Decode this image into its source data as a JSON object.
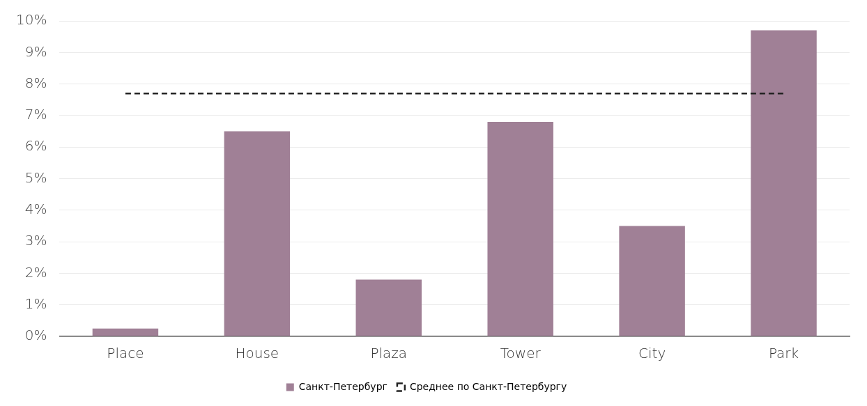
{
  "chart_data": {
    "type": "bar",
    "categories": [
      "Place",
      "House",
      "Plaza",
      "Tower",
      "City",
      "Park"
    ],
    "series": [
      {
        "name": "Санкт-Петербург",
        "color": "#a08096",
        "values": [
          0.25,
          6.5,
          1.8,
          6.8,
          3.5,
          9.7
        ]
      }
    ],
    "ref_lines": [
      {
        "axis": "y",
        "value": 7.7,
        "label": "Среднее по Санкт-Петербургу",
        "color": "#222222",
        "line_style": "dashed"
      }
    ],
    "ylim": [
      0,
      10
    ],
    "yticks": [
      {
        "value": 0,
        "label": "0%"
      },
      {
        "value": 1,
        "label": "1%"
      },
      {
        "value": 2,
        "label": "2%"
      },
      {
        "value": 3,
        "label": "3%"
      },
      {
        "value": 4,
        "label": "4%"
      },
      {
        "value": 5,
        "label": "5%"
      },
      {
        "value": 6,
        "label": "6%"
      },
      {
        "value": 7,
        "label": "7%"
      },
      {
        "value": 8,
        "label": "8%"
      },
      {
        "value": 9,
        "label": "9%"
      },
      {
        "value": 10,
        "label": "10%"
      }
    ],
    "grid": "y",
    "legend": "bottom"
  }
}
